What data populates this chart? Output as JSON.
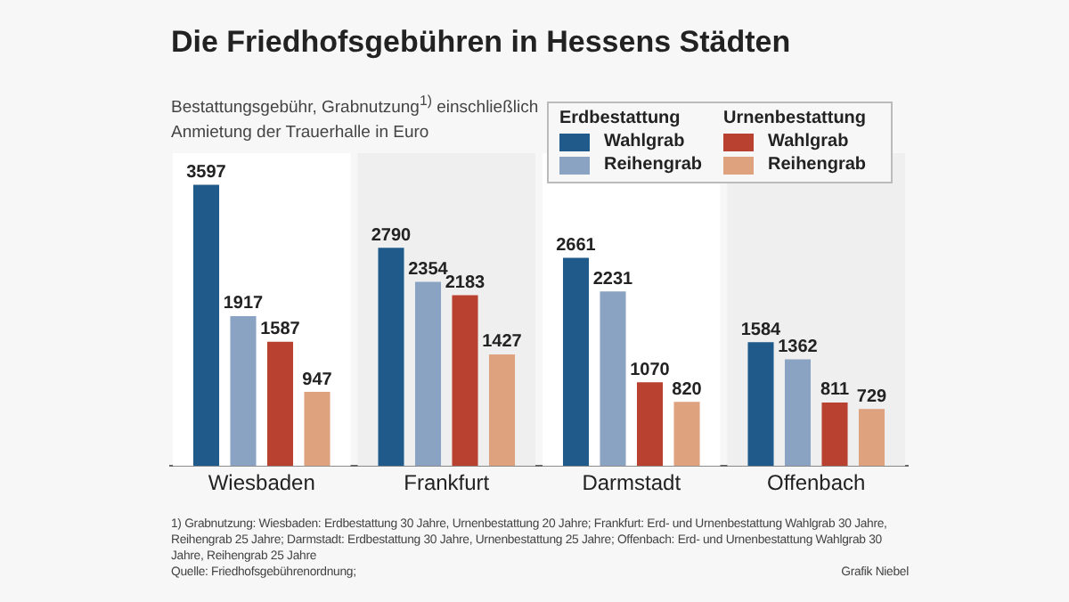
{
  "chart_data": {
    "type": "bar",
    "title": "Die Friedhofsgebühren in Hessens Städten",
    "subtitle": "Bestattungsgebühr, Grabnutzung$^{1)}$ einschließlich Anmietung der Trauerhalle in Euro",
    "categories": [
      "Wiesbaden",
      "Frankfurt",
      "Darmstadt",
      "Offenbach"
    ],
    "series": [
      {
        "name": "Wahlgrab",
        "color": "#1f5a8a",
        "values": [
          3597,
          2790,
          2661,
          1584
        ]
      },
      {
        "name": "Reihengrab",
        "color": "#8ba3c3",
        "values": [
          1917,
          2354,
          2231,
          1362
        ]
      },
      {
        "name": "Wahlgrab",
        "color": "#b8412f",
        "values": [
          1587,
          2183,
          1070,
          811
        ]
      },
      {
        "name": "Reihengrab",
        "color": "#dea27e",
        "values": [
          947,
          1427,
          820,
          729
        ]
      }
    ],
    "data_labels": true,
    "grid": false,
    "legend": "top right",
    "annotations": [
      "Erdbestattung",
      "Urnenbestattung",
      "1) Grabnutzung: Wiesbaden: Erdbestattung 30 Jahre, Urnenbestattung 20 Jahre; Frankfurt: Erd- und Urnenbestattung Wahlgrab 30 Jahre, Reihengrab 25 Jahre; Darmstadt: Erdbestattung 30 Jahre, Urnenbestattung 25 Jahre; Offenbach: Erd- und Urnenbestattung Wahlgrab 30 Jahre, Reihengrab 25 Jahre",
      "Quelle: Friedhofsgebührenordnung;",
      "Grafik Niebel"
    ]
  }
}
